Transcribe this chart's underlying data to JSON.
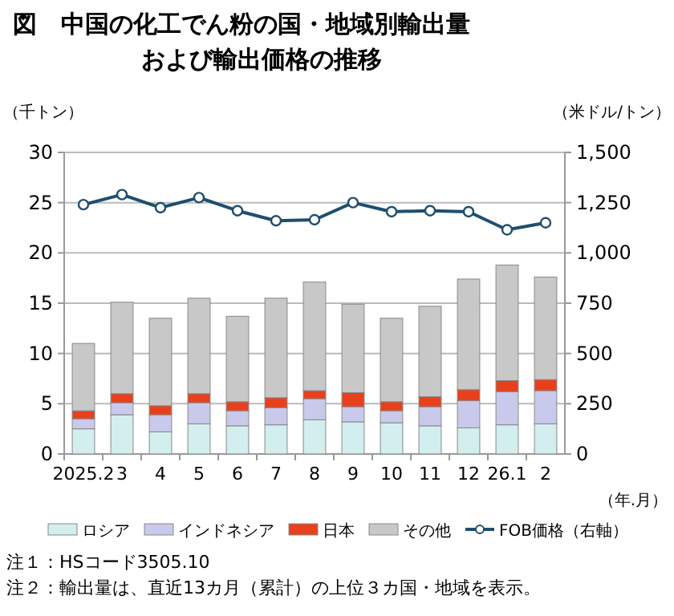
{
  "chart_data": {
    "type": "bar",
    "title": "図　中国の化工でん粉の国・地域別輸出量および輸出価格の推移",
    "xlabel": "（年.月）",
    "ylabel": "（千トン）",
    "y2label": "（米ドル/トン）",
    "categories": [
      "2025.2",
      "3",
      "4",
      "5",
      "6",
      "7",
      "8",
      "9",
      "10",
      "11",
      "12",
      "26.1",
      "2"
    ],
    "stacked": true,
    "series": [
      {
        "name": "ロシア",
        "color": "#d3eeee",
        "values": [
          2.5,
          3.9,
          2.2,
          3.0,
          2.8,
          2.9,
          3.4,
          3.2,
          3.1,
          2.8,
          2.6,
          2.9,
          3.0
        ]
      },
      {
        "name": "インドネシア",
        "color": "#c9c9ec",
        "values": [
          1.0,
          1.2,
          1.7,
          2.1,
          1.5,
          1.7,
          2.1,
          1.5,
          1.2,
          1.9,
          2.7,
          3.3,
          3.3
        ]
      },
      {
        "name": "日本",
        "color": "#e8401c",
        "values": [
          0.8,
          0.9,
          0.9,
          0.9,
          0.9,
          1.0,
          0.8,
          1.4,
          0.9,
          1.0,
          1.1,
          1.1,
          1.1
        ]
      },
      {
        "name": "その他",
        "color": "#c8c8c8",
        "values": [
          6.7,
          9.1,
          8.7,
          9.5,
          8.5,
          9.9,
          10.8,
          8.8,
          8.3,
          9.0,
          11.0,
          11.5,
          10.2
        ]
      },
      {
        "name": "FOB価格（右軸）",
        "type": "line",
        "axis": "y2",
        "marker": "circle",
        "color": "#1f4e6e",
        "values": [
          1240,
          1290,
          1225,
          1275,
          1210,
          1160,
          1165,
          1250,
          1205,
          1210,
          1205,
          1115,
          1150
        ]
      }
    ],
    "ylim": [
      0,
      30
    ],
    "yticks": [
      0,
      5,
      10,
      15,
      20,
      25,
      30
    ],
    "y2lim": [
      0,
      1500
    ],
    "y2ticks": [
      {
        "value": 0,
        "label": "0"
      },
      {
        "value": 250,
        "label": "250"
      },
      {
        "value": 500,
        "label": "500"
      },
      {
        "value": 750,
        "label": "750"
      },
      {
        "value": 1000,
        "label": "1,000"
      },
      {
        "value": 1250,
        "label": "1,250"
      },
      {
        "value": 1500,
        "label": "1,500"
      }
    ],
    "grid": "y",
    "legend": "bottom",
    "annotations": [
      "注１：HSコード3505.10",
      "注２：輸出量は、直近13カ月（累計）の上位３カ国・地域を表示。"
    ]
  }
}
